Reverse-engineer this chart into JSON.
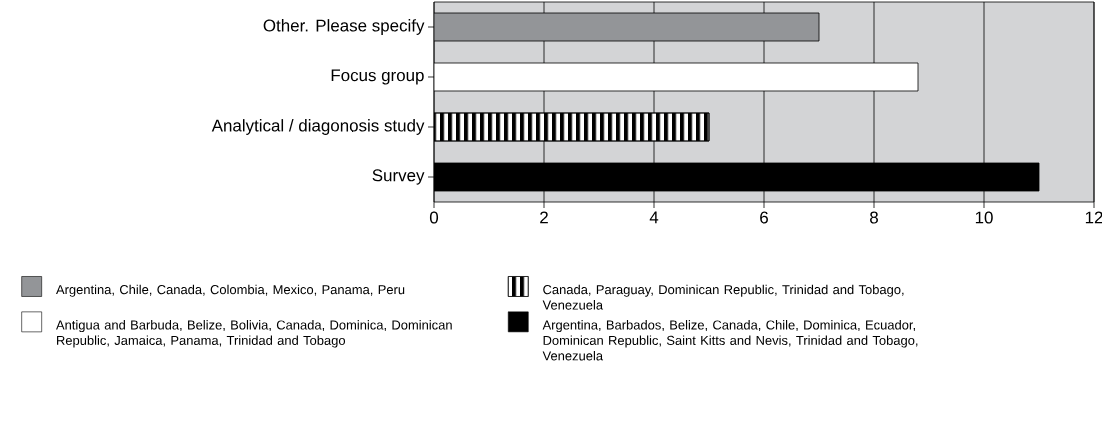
{
  "chart_data": {
    "type": "bar",
    "orientation": "horizontal",
    "categories": [
      "Other. Please specify",
      "Focus group",
      "Analytical / diagonosis study",
      "Survey"
    ],
    "series": [
      {
        "name": "Argentina, Chile, Canada, Colombia, Mexico, Panama, Peru",
        "color": "#939598",
        "values": [
          7,
          null,
          null,
          null
        ]
      },
      {
        "name": "Canada, Paraguay, Dominican Republic, Trinidad and Tobago, Venezuela",
        "color": "#000000",
        "values": [
          null,
          null,
          5,
          null
        ]
      },
      {
        "name": "Antigua and Barbuda, Belize, Bolivia, Canada, Dominica, Dominican Republic, Jamaica, Panama, Trinidad and Tobago",
        "color": "#ffffff",
        "values": [
          null,
          8.8,
          null,
          null
        ]
      },
      {
        "name": "Argentina, Barbados, Belize, Canada, Chile, Dominica, Ecuador, Dominican Republic, Saint Kitts and Nevis, Trinidad and Tobago, Venezuela",
        "color": "#000000",
        "values": [
          null,
          null,
          null,
          11
        ]
      }
    ],
    "xlim": [
      0,
      12
    ],
    "xticks": [
      0,
      2,
      4,
      6,
      8,
      10,
      12
    ],
    "grid": "x",
    "legend": "bottom"
  }
}
